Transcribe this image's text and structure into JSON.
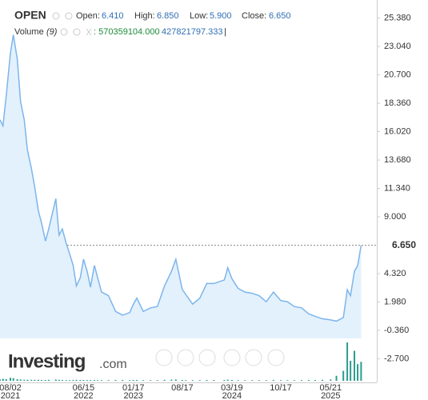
{
  "chart_data": {
    "type": "area",
    "symbol": "OPEN",
    "header": {
      "open_label": "Open:",
      "open": {
        "value": 6.41,
        "label": "6.410"
      },
      "high_label": "High:",
      "high": {
        "value": 6.85,
        "label": "6.850"
      },
      "low_label": "Low:",
      "low": {
        "value": 5.9,
        "label": "5.900"
      },
      "close_label": "Close:",
      "close": {
        "value": 6.65,
        "label": "6.650"
      },
      "volume_label": "Volume",
      "volume_period": "(9)",
      "volume_value": {
        "value": 570359104,
        "label": ": 570359104.000"
      },
      "volume_ma": {
        "value": 427821797.333,
        "label": "427821797.333"
      },
      "separator": "|"
    },
    "brand": "Investing",
    "brand_suffix": ".com",
    "x": [
      "2021-06-18",
      "2021-07-01",
      "2021-07-15",
      "2021-08-02",
      "2021-08-15",
      "2021-09-01",
      "2021-09-15",
      "2021-10-01",
      "2021-10-15",
      "2021-11-01",
      "2021-11-15",
      "2021-12-01",
      "2021-12-15",
      "2022-01-01",
      "2022-01-15",
      "2022-02-15",
      "2022-03-01",
      "2022-03-15",
      "2022-04-01",
      "2022-04-15",
      "2022-05-01",
      "2022-05-15",
      "2022-06-01",
      "2022-06-15",
      "2022-07-01",
      "2022-07-15",
      "2022-08-01",
      "2022-08-15",
      "2022-09-01",
      "2022-10-01",
      "2022-11-01",
      "2022-12-01",
      "2023-01-01",
      "2023-01-17",
      "2023-02-01",
      "2023-03-01",
      "2023-04-01",
      "2023-05-01",
      "2023-06-01",
      "2023-07-01",
      "2023-07-20",
      "2023-08-17",
      "2023-09-01",
      "2023-10-01",
      "2023-11-01",
      "2023-12-01",
      "2024-01-01",
      "2024-02-15",
      "2024-03-01",
      "2024-03-19",
      "2024-04-15",
      "2024-05-15",
      "2024-06-15",
      "2024-07-15",
      "2024-08-15",
      "2024-09-15",
      "2024-10-17",
      "2024-11-15",
      "2024-12-15",
      "2025-01-15",
      "2025-02-15",
      "2025-03-15",
      "2025-04-15",
      "2025-05-21",
      "2025-06-15",
      "2025-07-15",
      "2025-08-01",
      "2025-08-15",
      "2025-09-01",
      "2025-09-15",
      "2025-09-30"
    ],
    "series": [
      {
        "name": "OPEN",
        "color": "#7cb5ec",
        "values": [
          17.0,
          16.5,
          19.0,
          22.5,
          24.0,
          22.0,
          18.5,
          17.0,
          14.5,
          13.0,
          11.5,
          9.5,
          8.5,
          7.0,
          8.0,
          10.5,
          7.5,
          8.0,
          6.8,
          6.0,
          5.0,
          3.3,
          4.0,
          5.5,
          4.5,
          3.2,
          5.0,
          4.0,
          2.8,
          2.5,
          1.2,
          0.9,
          1.1,
          1.8,
          2.3,
          1.2,
          1.5,
          1.6,
          3.3,
          4.5,
          5.5,
          3.0,
          2.6,
          1.8,
          2.3,
          3.5,
          3.5,
          3.8,
          4.8,
          3.9,
          3.1,
          2.8,
          2.7,
          2.5,
          2.0,
          2.8,
          2.1,
          2.0,
          1.6,
          1.5,
          1.0,
          0.8,
          0.6,
          0.5,
          0.4,
          0.7,
          3.0,
          2.5,
          4.5,
          5.0,
          6.65
        ]
      },
      {
        "name": "Volume",
        "color": "#2a9d8f",
        "axis": "volume",
        "values": [
          40000000,
          60000000,
          50000000,
          90000000,
          80000000,
          50000000,
          40000000,
          30000000,
          30000000,
          30000000,
          30000000,
          30000000,
          25000000,
          25000000,
          30000000,
          40000000,
          30000000,
          25000000,
          20000000,
          20000000,
          25000000,
          30000000,
          25000000,
          25000000,
          20000000,
          20000000,
          25000000,
          20000000,
          20000000,
          20000000,
          25000000,
          25000000,
          20000000,
          25000000,
          25000000,
          20000000,
          20000000,
          20000000,
          30000000,
          35000000,
          40000000,
          25000000,
          20000000,
          20000000,
          20000000,
          25000000,
          25000000,
          25000000,
          35000000,
          25000000,
          20000000,
          20000000,
          20000000,
          20000000,
          20000000,
          25000000,
          20000000,
          20000000,
          20000000,
          20000000,
          25000000,
          25000000,
          30000000,
          40000000,
          150000000,
          300000000,
          1150000000,
          600000000,
          900000000,
          500000000,
          570359104
        ]
      }
    ],
    "xlim": [
      "2021-06-18",
      "2025-12-07"
    ],
    "xticks": [
      {
        "value": "2021-08-02",
        "label": "08/02",
        "year": "2021"
      },
      {
        "value": "2022-06-15",
        "label": "06/15",
        "year": "2022"
      },
      {
        "value": "2023-01-17",
        "label": "01/17",
        "year": "2023"
      },
      {
        "value": "2023-08-17",
        "label": "08/17"
      },
      {
        "value": "2024-03-19",
        "label": "03/19",
        "year": "2024"
      },
      {
        "value": "2024-10-17",
        "label": "10/17"
      },
      {
        "value": "2025-05-21",
        "label": "05/21",
        "year": "2025"
      }
    ],
    "ylim": [
      -4.12,
      26.87
    ],
    "yticks": [
      {
        "value": 25.38,
        "label": "25.380"
      },
      {
        "value": 23.04,
        "label": "23.040"
      },
      {
        "value": 20.7,
        "label": "20.700"
      },
      {
        "value": 18.36,
        "label": "18.360"
      },
      {
        "value": 16.02,
        "label": "16.020"
      },
      {
        "value": 13.68,
        "label": "13.680"
      },
      {
        "value": 11.34,
        "label": "11.340"
      },
      {
        "value": 9,
        "label": "9.000"
      },
      {
        "value": 4.32,
        "label": "4.320"
      },
      {
        "value": 1.98,
        "label": "1.980"
      },
      {
        "value": -0.36,
        "label": "-0.360"
      },
      {
        "value": -2.7,
        "label": "-2.700"
      }
    ],
    "volume_lim": [
      0,
      1200000000
    ]
  }
}
